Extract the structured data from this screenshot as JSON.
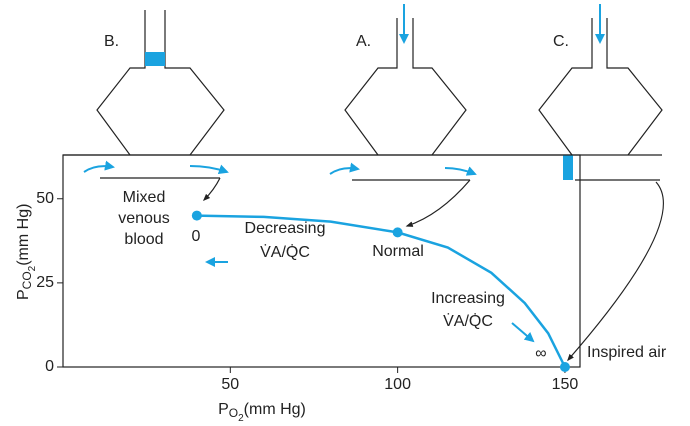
{
  "labels": {
    "b": "B.",
    "a": "A.",
    "c": "C."
  },
  "chart_data": {
    "type": "line",
    "x_label": {
      "main": "P",
      "sub": "O",
      "subsub": "2",
      "unit": "(mm Hg)"
    },
    "y_label": {
      "main": "P",
      "sub": "CO",
      "subsub": "2",
      "unit": "(mm Hg)"
    },
    "xlim": [
      0,
      154.5
    ],
    "ylim": [
      0,
      63
    ],
    "xticks": [
      50,
      100,
      150
    ],
    "yticks": [
      0,
      25,
      50
    ],
    "color": "#1aa3e0",
    "x": [
      40,
      60,
      80,
      100,
      115,
      128,
      138,
      145,
      150
    ],
    "values": [
      45,
      44.6,
      43.2,
      40,
      35.5,
      28,
      19,
      10,
      0
    ],
    "points": {
      "x": [
        40,
        100,
        150
      ],
      "values": [
        45,
        40,
        0
      ]
    },
    "annotations": [
      "Mixed",
      "venous",
      "blood",
      "0",
      "Decreasing",
      "V̇A/Q̇C",
      "Normal",
      "Increasing",
      "V̇A/Q̇C",
      "∞",
      "Inspired air"
    ]
  }
}
